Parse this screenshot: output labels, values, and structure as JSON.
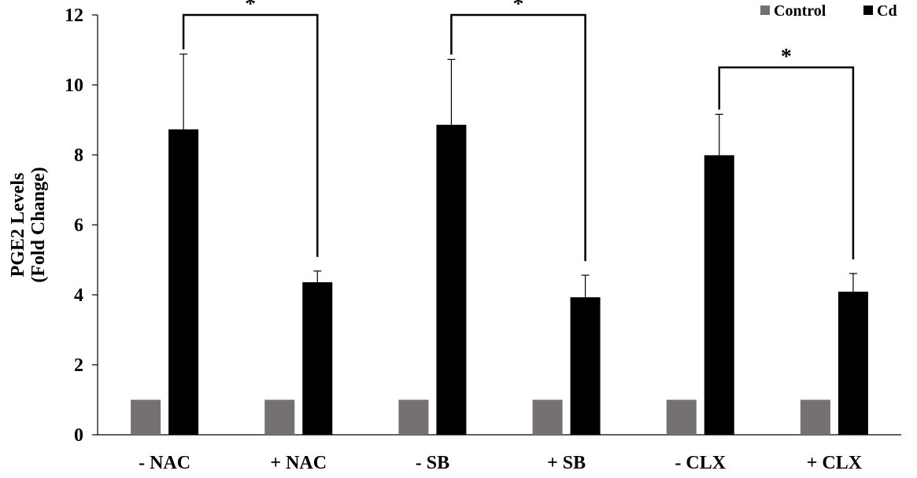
{
  "chart_data": {
    "type": "bar",
    "categories": [
      "- NAC",
      "+ NAC",
      "- SB",
      "+ SB",
      "- CLX",
      "+ CLX"
    ],
    "series": [
      {
        "name": "Control",
        "color": "#767171",
        "values": [
          1.0,
          1.0,
          1.0,
          1.0,
          1.0,
          1.0
        ],
        "errors": [
          0,
          0,
          0,
          0,
          0,
          0
        ]
      },
      {
        "name": "Cd",
        "color": "#000000",
        "values": [
          8.73,
          4.36,
          8.86,
          3.93,
          7.99,
          4.09
        ],
        "errors": [
          2.15,
          0.32,
          1.87,
          0.63,
          1.17,
          0.52
        ]
      }
    ],
    "ylabel": [
      "PGE2 Levels",
      "(Fold Change)"
    ],
    "ylim": [
      0,
      12
    ],
    "yticks": [
      0,
      2,
      4,
      6,
      8,
      10,
      12
    ],
    "grid": false,
    "legend": "top-right",
    "significance": [
      {
        "from": 0,
        "to": 1,
        "label": "*",
        "y": 12.0
      },
      {
        "from": 2,
        "to": 3,
        "label": "*",
        "y": 12.0
      },
      {
        "from": 4,
        "to": 5,
        "label": "*",
        "y": 10.5
      }
    ]
  }
}
